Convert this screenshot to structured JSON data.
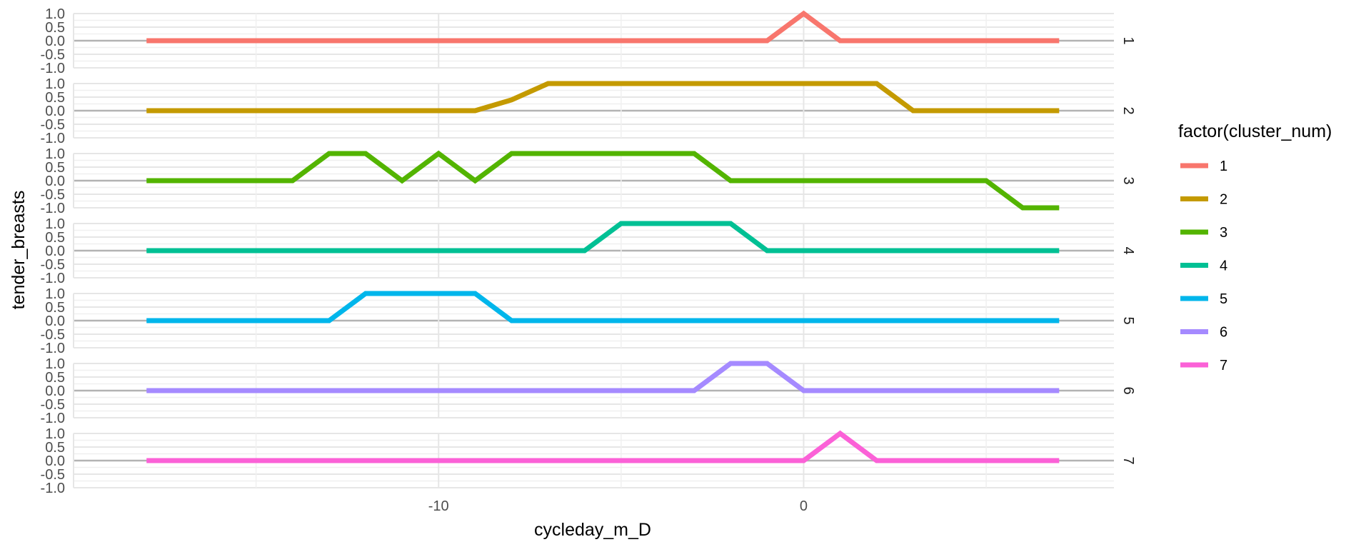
{
  "chart_data": {
    "type": "line",
    "facet": "strip-right",
    "xlabel": "cycleday_m_D",
    "ylabel": "tender_breasts",
    "xlim": [
      -20,
      8.5
    ],
    "ylim": [
      -1,
      1
    ],
    "x_ticks": [
      -10,
      0
    ],
    "y_ticks": [
      1.0,
      0.5,
      0.0,
      -0.5,
      -1.0
    ],
    "y_tick_labels": [
      "1.0",
      "0.5",
      "0.0",
      "-0.5",
      "-1.0"
    ],
    "grid": true,
    "legend": {
      "title": "factor(cluster_num)",
      "position": "right"
    },
    "x": [
      -18,
      -17,
      -16,
      -15,
      -14,
      -13,
      -12,
      -11,
      -10,
      -9,
      -8,
      -7,
      -6,
      -5,
      -4,
      -3,
      -2,
      -1,
      0,
      1,
      2,
      3,
      4,
      5,
      6,
      7
    ],
    "series": [
      {
        "name": "1",
        "color": "#F8766D",
        "values": [
          0,
          0,
          0,
          0,
          0,
          0,
          0,
          0,
          0,
          0,
          0,
          0,
          0,
          0,
          0,
          0,
          0,
          0,
          1,
          0,
          0,
          0,
          0,
          0,
          0,
          0
        ]
      },
      {
        "name": "2",
        "color": "#C49A00",
        "values": [
          0,
          0,
          0,
          0,
          0,
          0,
          0,
          0,
          0,
          0,
          0.4,
          1,
          1,
          1,
          1,
          1,
          1,
          1,
          1,
          1,
          1,
          0,
          0,
          0,
          0,
          0
        ]
      },
      {
        "name": "3",
        "color": "#53B400",
        "values": [
          0,
          0,
          0,
          0,
          0,
          1,
          1,
          0,
          1,
          0,
          1,
          1,
          1,
          1,
          1,
          1,
          0,
          0,
          0,
          0,
          0,
          0,
          0,
          0,
          -1,
          -1
        ]
      },
      {
        "name": "4",
        "color": "#00C094",
        "values": [
          0,
          0,
          0,
          0,
          0,
          0,
          0,
          0,
          0,
          0,
          0,
          0,
          0,
          1,
          1,
          1,
          1,
          0,
          0,
          0,
          0,
          0,
          0,
          0,
          0,
          0
        ]
      },
      {
        "name": "5",
        "color": "#00B6EB",
        "values": [
          0,
          0,
          0,
          0,
          0,
          0,
          1,
          1,
          1,
          1,
          0,
          0,
          0,
          0,
          0,
          0,
          0,
          0,
          0,
          0,
          0,
          0,
          0,
          0,
          0,
          0
        ]
      },
      {
        "name": "6",
        "color": "#A58AFF",
        "values": [
          0,
          0,
          0,
          0,
          0,
          0,
          0,
          0,
          0,
          0,
          0,
          0,
          0,
          0,
          0,
          0,
          1,
          1,
          0,
          0,
          0,
          0,
          0,
          0,
          0,
          0
        ]
      },
      {
        "name": "7",
        "color": "#FB61D7",
        "values": [
          0,
          0,
          0,
          0,
          0,
          0,
          0,
          0,
          0,
          0,
          0,
          0,
          0,
          0,
          0,
          0,
          0,
          0,
          0,
          1,
          0,
          0,
          0,
          0,
          0,
          0
        ]
      }
    ]
  }
}
